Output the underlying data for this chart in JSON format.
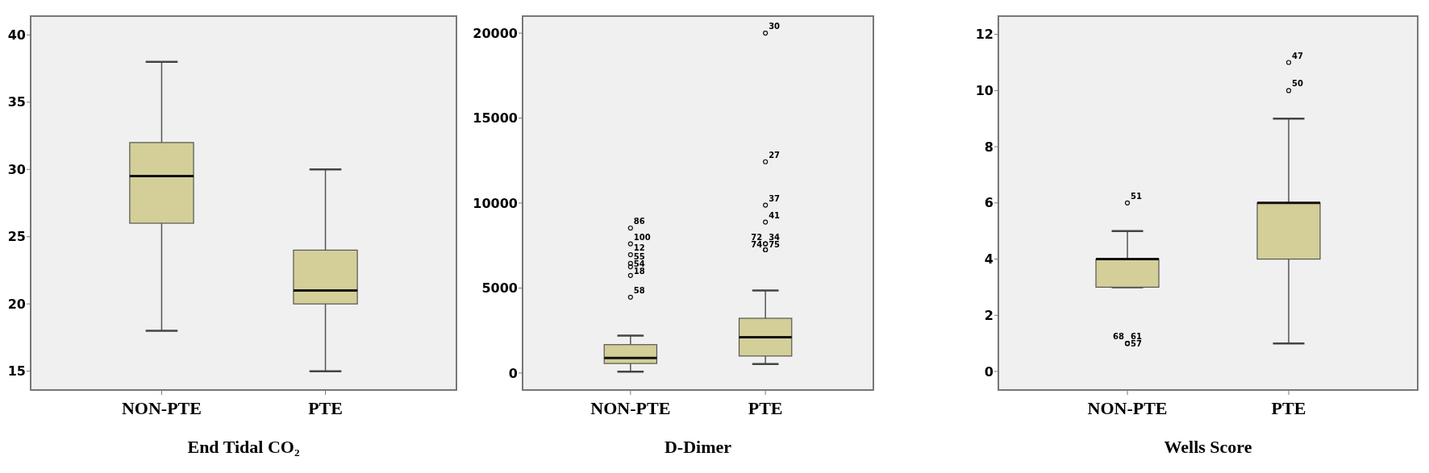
{
  "chart_data": [
    {
      "type": "box",
      "xlabel": "End Tidal CO₂",
      "categories": [
        "NON-PTE",
        "PTE"
      ],
      "ylim": [
        13.6,
        41.4
      ],
      "yticks": [
        15,
        20,
        25,
        30,
        35,
        40
      ],
      "series": [
        {
          "color": "#d4cf98",
          "boxes": [
            {
              "low": 18,
              "q1": 26,
              "median": 29.5,
              "q3": 32,
              "high": 38
            },
            {
              "low": 15,
              "q1": 20,
              "median": 21,
              "q3": 24,
              "high": 30
            }
          ]
        }
      ]
    },
    {
      "type": "box",
      "xlabel": "D-Dimer",
      "categories": [
        "NON-PTE",
        "PTE"
      ],
      "ylim": [
        -1000,
        21000
      ],
      "yticks": [
        0,
        5000,
        10000,
        15000,
        20000
      ],
      "series": [
        {
          "color": "#d4cf98",
          "boxes": [
            {
              "low": 80,
              "q1": 560,
              "median": 880,
              "q3": 1670,
              "high": 2200,
              "outliers": [
                8530,
                7600,
                6960,
                6450,
                6250,
                5740,
                4460
              ]
            },
            {
              "low": 530,
              "q1": 1000,
              "median": 2100,
              "q3": 3220,
              "high": 4860,
              "outliers": [
                20000,
                12430,
                9880,
                8880,
                7600,
                7600,
                7250,
                7250
              ]
            }
          ]
        }
      ],
      "annotations": [
        "86",
        "100",
        "12",
        "55",
        "54",
        "18",
        "58",
        "30",
        "27",
        "37",
        "41",
        "34",
        "72",
        "75",
        "74"
      ]
    },
    {
      "type": "box",
      "xlabel": "Wells Score",
      "categories": [
        "NON-PTE",
        "PTE"
      ],
      "ylim": [
        -0.66,
        12.65
      ],
      "yticks": [
        0,
        2,
        4,
        6,
        8,
        10,
        12
      ],
      "series": [
        {
          "color": "#d4cf98",
          "boxes": [
            {
              "low": 3,
              "q1": 3,
              "median": 4,
              "q3": 4,
              "high": 5,
              "outliers": [
                6,
                1,
                1,
                1
              ]
            },
            {
              "low": 1,
              "q1": 4,
              "median": 6,
              "q3": 6,
              "high": 9,
              "outliers": [
                11,
                10
              ]
            }
          ]
        }
      ],
      "annotations": [
        "51",
        "61",
        "68",
        "57",
        "47",
        "50"
      ]
    }
  ]
}
